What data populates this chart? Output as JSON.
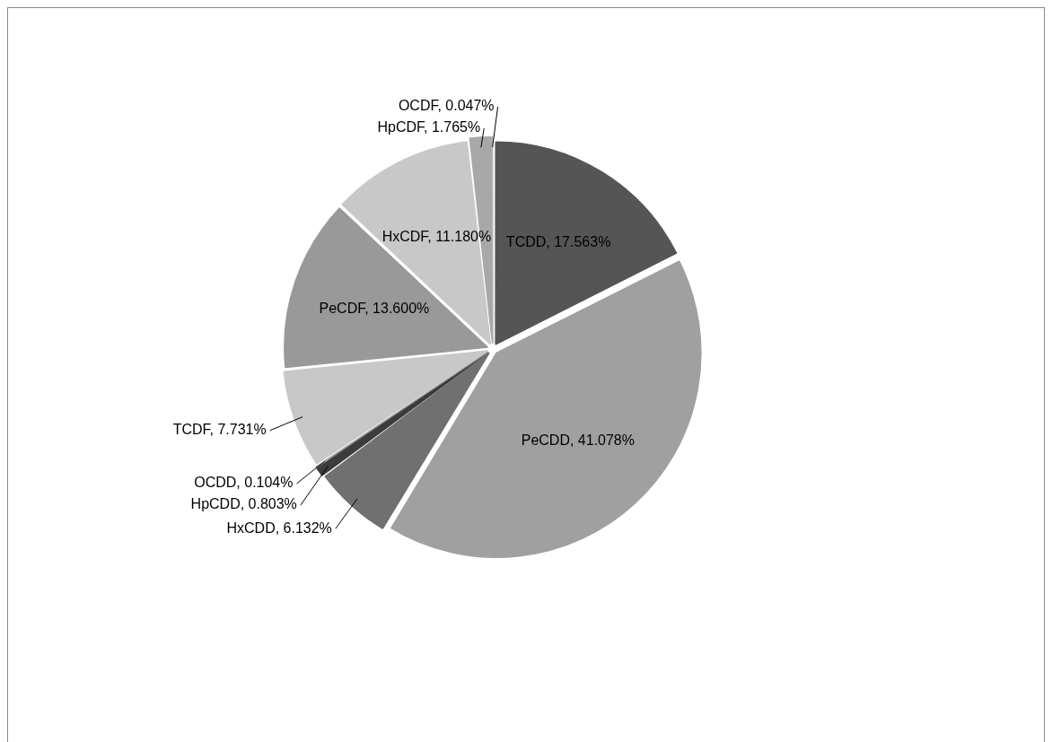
{
  "chart_data": {
    "type": "pie",
    "categories": [
      "TCDD",
      "PeCDD",
      "HxCDD",
      "HpCDD",
      "OCDD",
      "TCDF",
      "PeCDF",
      "HxCDF",
      "HpCDF",
      "OCDF"
    ],
    "values": [
      17.563,
      41.078,
      6.132,
      0.803,
      0.104,
      7.731,
      13.6,
      11.18,
      1.765,
      0.047
    ],
    "value_labels": [
      "17.563%",
      "41.078%",
      "6.132%",
      "0.803%",
      "0.104%",
      "7.731%",
      "13.600%",
      "11.180%",
      "1.765%",
      "0.047%"
    ],
    "colors": [
      "#555555",
      "#a0a0a0",
      "#707070",
      "#3c3c3c",
      "#8c8c8c",
      "#c8c8c8",
      "#999999",
      "#c8c8c8",
      "#a8a8a8",
      "#b4b4b4"
    ],
    "legend": false
  }
}
